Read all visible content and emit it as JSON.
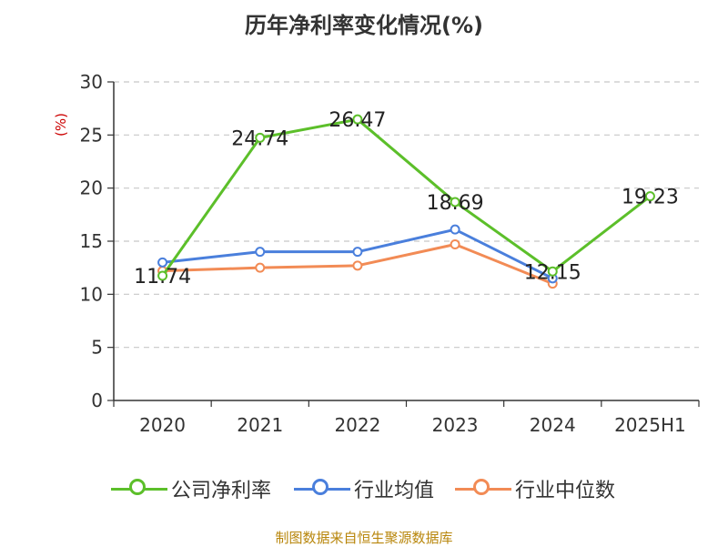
{
  "title": "历年净利率变化情况(%)",
  "footer": "制图数据来自恒生聚源数据库",
  "chart_data": {
    "type": "line",
    "title": "历年净利率变化情况(%)",
    "ylabel": "(%)",
    "xlabel": "",
    "categories": [
      "2020",
      "2021",
      "2022",
      "2023",
      "2024",
      "2025H1"
    ],
    "ylim": [
      0,
      30
    ],
    "yticks": [
      0,
      5,
      10,
      15,
      20,
      25,
      30
    ],
    "grid": true,
    "legend_position": "bottom",
    "series": [
      {
        "name": "公司净利率",
        "color": "#5cbf2a",
        "values": [
          11.74,
          24.74,
          26.47,
          18.69,
          12.15,
          19.23
        ],
        "labels": [
          "11.74",
          "24.74",
          "26.47",
          "18.69",
          "12.15",
          "19.23"
        ]
      },
      {
        "name": "行业均值",
        "color": "#4a7fdc",
        "values": [
          13.0,
          14.0,
          14.0,
          16.1,
          11.5,
          null
        ]
      },
      {
        "name": "行业中位数",
        "color": "#f28b55",
        "values": [
          12.2,
          12.5,
          12.7,
          14.7,
          11.0,
          null
        ]
      }
    ]
  }
}
